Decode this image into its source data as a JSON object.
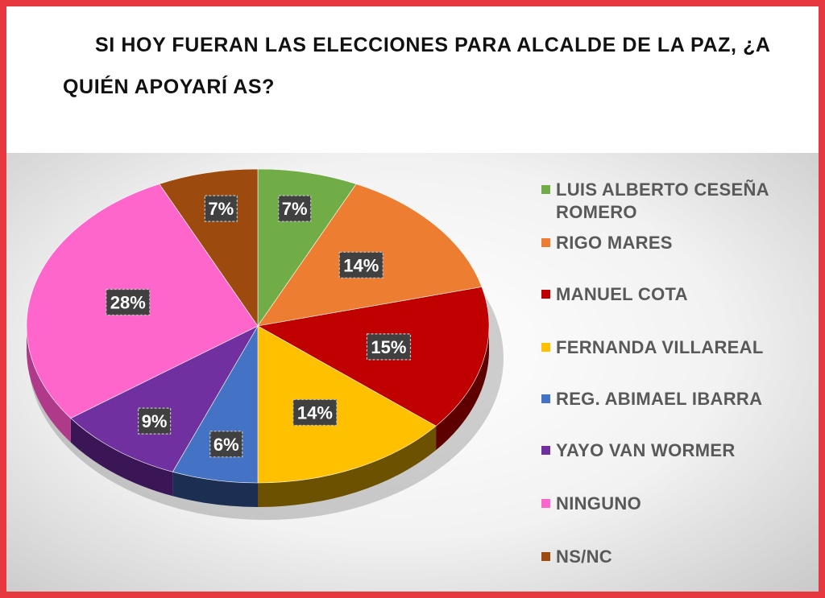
{
  "title": "SI HOY FUERAN LAS ELECCIONES PARA ALCALDE DE LA PAZ, ¿A QUIÉN APOYARÍ AS?",
  "chart_data": {
    "type": "pie",
    "title": "SI HOY FUERAN LAS ELECCIONES PARA ALCALDE DE LA PAZ, ¿A QUIÉN APOYARÍ AS?",
    "legend_position": "right",
    "slices": [
      {
        "label": "LUIS ALBERTO CESEÑA ROMERO",
        "value": 7,
        "display": "7%",
        "color": "#70ad47",
        "side": "#3f6b24"
      },
      {
        "label": "RIGO MARES",
        "value": 14,
        "display": "14%",
        "color": "#ed7d31",
        "side": "#8a4513"
      },
      {
        "label": "MANUEL COTA",
        "value": 15,
        "display": "15%",
        "color": "#c00000",
        "side": "#5e0000"
      },
      {
        "label": "FERNANDA VILLAREAL",
        "value": 14,
        "display": "14%",
        "color": "#ffc000",
        "side": "#6b5100"
      },
      {
        "label": "REG. ABIMAEL IBARRA",
        "value": 6,
        "display": "6%",
        "color": "#4472c4",
        "side": "#1c2f52"
      },
      {
        "label": "YAYO VAN WORMER",
        "value": 9,
        "display": "9%",
        "color": "#7030a0",
        "side": "#3a1657"
      },
      {
        "label": "NINGUNO",
        "value": 28,
        "display": "28%",
        "color": "#ff66cc",
        "side": "#b03a8a"
      },
      {
        "label": "NS/NC",
        "value": 7,
        "display": "7%",
        "color": "#9c4a0e",
        "side": "#552708"
      }
    ]
  }
}
